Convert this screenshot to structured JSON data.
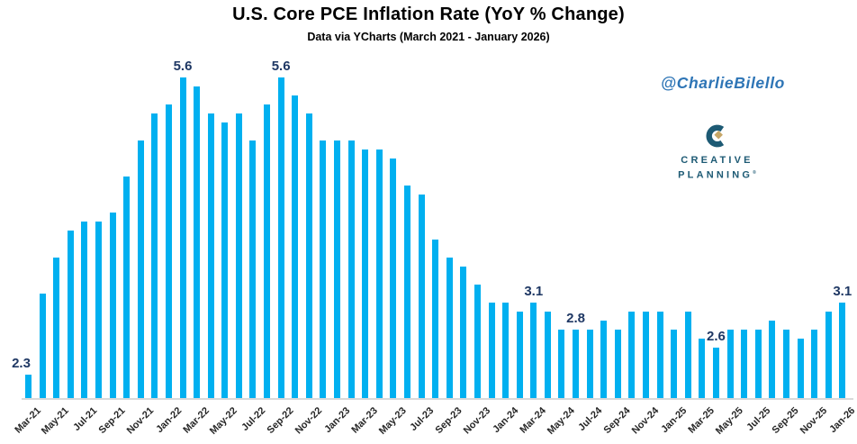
{
  "header": {
    "title": "U.S. Core PCE Inflation Rate (YoY % Change)",
    "subtitle": "Data via YCharts (March 2021 - January 2026)"
  },
  "attribution": "@CharlieBilello",
  "logo": {
    "line1": "CREATIVE",
    "line2": "PLANNING",
    "registered": "®"
  },
  "colors": {
    "background": "#FFFFFF",
    "bar": "#00B0F0",
    "callout_text": "#1F3864",
    "axis_line": "#D9D9D9",
    "tick_text": "#262626",
    "title_text": "#000000",
    "attribution_text": "#2E75B6",
    "logo_teal": "#1D5A74",
    "logo_gold": "#C7A768"
  },
  "chart_data": {
    "type": "bar",
    "title": "U.S. Core PCE Inflation Rate (YoY % Change)",
    "subtitle": "Data via YCharts (March 2021 - January 2026)",
    "series_name": "Core PCE YoY % Change",
    "x": [
      "Mar-21",
      "Apr-21",
      "May-21",
      "Jun-21",
      "Jul-21",
      "Aug-21",
      "Sep-21",
      "Oct-21",
      "Nov-21",
      "Dec-21",
      "Jan-22",
      "Feb-22",
      "Mar-22",
      "Apr-22",
      "May-22",
      "Jun-22",
      "Jul-22",
      "Aug-22",
      "Sep-22",
      "Oct-22",
      "Nov-22",
      "Dec-22",
      "Jan-23",
      "Feb-23",
      "Mar-23",
      "Apr-23",
      "May-23",
      "Jun-23",
      "Jul-23",
      "Aug-23",
      "Sep-23",
      "Oct-23",
      "Nov-23",
      "Dec-23",
      "Jan-24",
      "Feb-24",
      "Mar-24",
      "Apr-24",
      "May-24",
      "Jun-24",
      "Jul-24",
      "Aug-24",
      "Sep-24",
      "Oct-24",
      "Nov-24",
      "Dec-24",
      "Jan-25",
      "Feb-25",
      "Mar-25",
      "Apr-25",
      "May-25",
      "Jun-25",
      "Jul-25",
      "Aug-25",
      "Sep-25",
      "Oct-25",
      "Nov-25",
      "Dec-25",
      "Jan-26"
    ],
    "values": [
      2.3,
      3.2,
      3.6,
      3.9,
      4.0,
      4.0,
      4.1,
      4.5,
      4.9,
      5.2,
      5.3,
      5.6,
      5.5,
      5.2,
      5.1,
      5.2,
      4.9,
      5.3,
      5.6,
      5.4,
      5.2,
      4.9,
      4.9,
      4.9,
      4.8,
      4.8,
      4.7,
      4.4,
      4.3,
      3.8,
      3.6,
      3.5,
      3.3,
      3.1,
      3.1,
      3.0,
      3.1,
      3.0,
      2.8,
      2.8,
      2.8,
      2.9,
      2.8,
      3.0,
      3.0,
      3.0,
      2.8,
      3.0,
      2.7,
      2.6,
      2.8,
      2.8,
      2.8,
      2.9,
      2.8,
      2.7,
      2.8,
      3.0,
      3.1
    ],
    "labeled_points": [
      {
        "index": 0,
        "x": "Mar-21",
        "label": "2.3"
      },
      {
        "index": 11,
        "x": "Feb-22",
        "label": "5.6"
      },
      {
        "index": 18,
        "x": "Sep-22",
        "label": "5.6"
      },
      {
        "index": 36,
        "x": "Mar-24",
        "label": "3.1"
      },
      {
        "index": 39,
        "x": "Jun-24",
        "label": "2.8"
      },
      {
        "index": 49,
        "x": "Apr-25",
        "label": "2.6"
      },
      {
        "index": 58,
        "x": "Jan-26",
        "label": "3.1"
      }
    ],
    "tick_every": 2,
    "xlabel": "",
    "ylabel": "",
    "ylim": [
      2.0,
      5.8
    ],
    "y_axis_visible": false,
    "gridlines": false,
    "legend": false
  }
}
